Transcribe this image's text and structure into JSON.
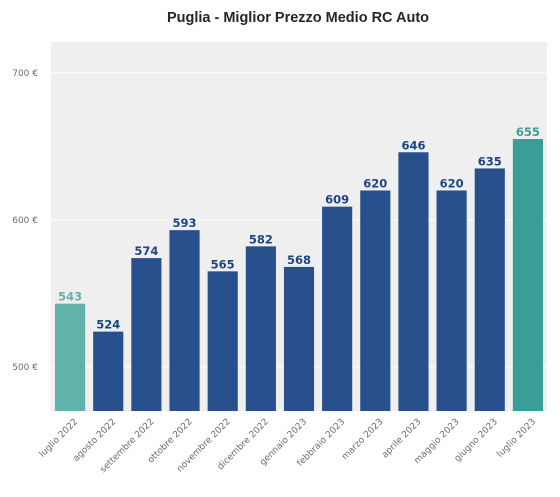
{
  "chart_data": {
    "type": "bar",
    "title": "Puglia - Miglior Prezzo Medio RC Auto",
    "xlabel": "",
    "ylabel": "",
    "ylim": [
      470,
      721
    ],
    "yticks": [
      500,
      600,
      700
    ],
    "ytick_labels": [
      "500 €",
      "600 €",
      "700 €"
    ],
    "categories": [
      "luglio 2022",
      "agosto 2022",
      "settembre 2022",
      "ottobre 2022",
      "novembre 2022",
      "dicembre 2022",
      "gennaio 2023",
      "febbraio 2023",
      "marzo 2023",
      "aprile 2023",
      "maggio 2023",
      "giugno 2023",
      "luglio 2023"
    ],
    "values": [
      543,
      524,
      574,
      593,
      565,
      582,
      568,
      609,
      620,
      646,
      620,
      635,
      655
    ],
    "data_labels": [
      "543",
      "524",
      "574",
      "593",
      "565",
      "582",
      "568",
      "609",
      "620",
      "646",
      "620",
      "635",
      "655"
    ],
    "grid": true,
    "colors": {
      "bar_default": "#27508c",
      "bar_first": "#62b2ac",
      "bar_last": "#3a9e96",
      "label_default": "#1c4585",
      "label_first": "#62b2ac",
      "label_last": "#3a9e96",
      "plot_background": "#efefef",
      "grid": "#ffffff"
    }
  }
}
